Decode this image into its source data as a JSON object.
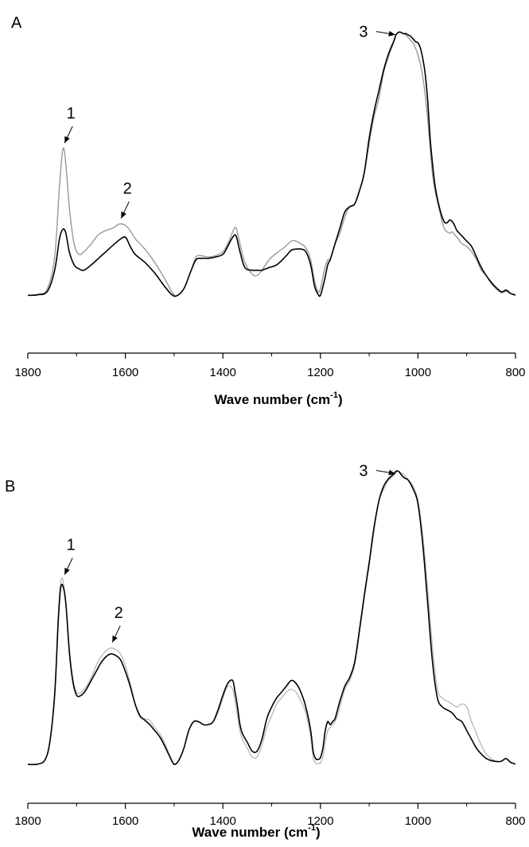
{
  "chart_data": [
    {
      "type": "line",
      "panel_label": "A",
      "xlabel": "Wave number (cm",
      "xlabel_sup": "-1",
      "xlabel_close": ")",
      "xlim": [
        1800,
        800
      ],
      "ylim": [
        0,
        1.05
      ],
      "xticks": [
        1800,
        1600,
        1400,
        1200,
        1000,
        800
      ],
      "xtick_labels": [
        "1800",
        "1600",
        "1400",
        "1200",
        "1000",
        "800"
      ],
      "grid": false,
      "series": [
        {
          "color": "#999999",
          "x": [
            1800,
            1780,
            1760,
            1745,
            1735,
            1728,
            1722,
            1715,
            1705,
            1695,
            1685,
            1670,
            1655,
            1640,
            1625,
            1612,
            1600,
            1590,
            1580,
            1560,
            1540,
            1520,
            1505,
            1495,
            1480,
            1465,
            1455,
            1445,
            1430,
            1415,
            1400,
            1390,
            1380,
            1373,
            1365,
            1355,
            1340,
            1330,
            1320,
            1305,
            1290,
            1275,
            1260,
            1250,
            1240,
            1230,
            1220,
            1212,
            1205,
            1200,
            1192,
            1185,
            1180,
            1170,
            1160,
            1150,
            1140,
            1130,
            1120,
            1110,
            1100,
            1090,
            1080,
            1070,
            1060,
            1050,
            1045,
            1040,
            1035,
            1030,
            1025,
            1020,
            1015,
            1010,
            1005,
            1000,
            995,
            990,
            985,
            980,
            975,
            970,
            965,
            960,
            955,
            950,
            945,
            940,
            935,
            930,
            925,
            920,
            910,
            900,
            890,
            880,
            870,
            860,
            850,
            840,
            830,
            825,
            820,
            815,
            810,
            800
          ],
          "y": [
            0.005,
            0.008,
            0.03,
            0.15,
            0.42,
            0.56,
            0.5,
            0.34,
            0.2,
            0.16,
            0.17,
            0.2,
            0.235,
            0.25,
            0.26,
            0.275,
            0.27,
            0.25,
            0.22,
            0.18,
            0.13,
            0.07,
            0.02,
            0.003,
            0.03,
            0.1,
            0.15,
            0.155,
            0.15,
            0.155,
            0.17,
            0.2,
            0.245,
            0.26,
            0.2,
            0.13,
            0.085,
            0.08,
            0.1,
            0.14,
            0.165,
            0.185,
            0.21,
            0.21,
            0.2,
            0.185,
            0.14,
            0.06,
            0.02,
            0.03,
            0.1,
            0.14,
            0.14,
            0.2,
            0.24,
            0.3,
            0.34,
            0.35,
            0.4,
            0.47,
            0.58,
            0.68,
            0.75,
            0.85,
            0.91,
            0.96,
            0.99,
            1.0,
            1.0,
            0.995,
            0.99,
            0.98,
            0.97,
            0.96,
            0.94,
            0.915,
            0.88,
            0.83,
            0.76,
            0.67,
            0.56,
            0.46,
            0.4,
            0.36,
            0.32,
            0.28,
            0.255,
            0.245,
            0.24,
            0.245,
            0.235,
            0.225,
            0.2,
            0.19,
            0.17,
            0.14,
            0.1,
            0.08,
            0.05,
            0.03,
            0.015,
            0.016,
            0.02,
            0.017,
            0.012,
            0.005
          ]
        },
        {
          "color": "#000000",
          "x": [
            1800,
            1780,
            1760,
            1745,
            1735,
            1728,
            1722,
            1715,
            1705,
            1695,
            1685,
            1670,
            1655,
            1640,
            1625,
            1612,
            1600,
            1590,
            1580,
            1560,
            1540,
            1520,
            1505,
            1495,
            1480,
            1465,
            1455,
            1445,
            1430,
            1415,
            1400,
            1390,
            1380,
            1373,
            1365,
            1355,
            1340,
            1330,
            1320,
            1305,
            1290,
            1275,
            1260,
            1250,
            1240,
            1230,
            1220,
            1212,
            1205,
            1200,
            1192,
            1185,
            1180,
            1170,
            1160,
            1150,
            1140,
            1130,
            1120,
            1110,
            1100,
            1090,
            1080,
            1070,
            1060,
            1050,
            1045,
            1040,
            1035,
            1030,
            1025,
            1020,
            1015,
            1010,
            1005,
            1000,
            995,
            990,
            985,
            980,
            975,
            970,
            965,
            960,
            955,
            950,
            945,
            940,
            935,
            930,
            925,
            920,
            910,
            900,
            890,
            880,
            870,
            860,
            850,
            840,
            830,
            825,
            820,
            815,
            810,
            800
          ],
          "y": [
            0.005,
            0.007,
            0.02,
            0.1,
            0.22,
            0.255,
            0.24,
            0.17,
            0.12,
            0.105,
            0.1,
            0.12,
            0.145,
            0.17,
            0.195,
            0.215,
            0.225,
            0.19,
            0.16,
            0.13,
            0.09,
            0.04,
            0.008,
            0.003,
            0.03,
            0.1,
            0.14,
            0.145,
            0.145,
            0.15,
            0.16,
            0.19,
            0.225,
            0.23,
            0.17,
            0.11,
            0.1,
            0.1,
            0.1,
            0.11,
            0.12,
            0.145,
            0.175,
            0.18,
            0.18,
            0.17,
            0.12,
            0.04,
            0.01,
            0.005,
            0.06,
            0.12,
            0.14,
            0.2,
            0.26,
            0.32,
            0.34,
            0.35,
            0.4,
            0.47,
            0.6,
            0.7,
            0.78,
            0.86,
            0.92,
            0.965,
            0.99,
            1.0,
            1.0,
            0.995,
            0.995,
            0.99,
            0.985,
            0.975,
            0.965,
            0.96,
            0.94,
            0.9,
            0.84,
            0.74,
            0.6,
            0.5,
            0.42,
            0.37,
            0.33,
            0.3,
            0.28,
            0.28,
            0.29,
            0.285,
            0.27,
            0.25,
            0.23,
            0.21,
            0.19,
            0.15,
            0.11,
            0.08,
            0.055,
            0.035,
            0.02,
            0.02,
            0.025,
            0.02,
            0.012,
            0.006
          ]
        }
      ],
      "annotations": [
        {
          "label": "1",
          "x": 1728,
          "y": 0.56
        },
        {
          "label": "2",
          "x": 1612,
          "y": 0.275
        },
        {
          "label": "3",
          "x": 1040,
          "y": 1.0
        }
      ]
    },
    {
      "type": "line",
      "panel_label": "B",
      "xlabel": "Wave number (cm",
      "xlabel_sup": "-1",
      "xlabel_close": ")",
      "xlim": [
        1800,
        800
      ],
      "ylim": [
        0,
        1.05
      ],
      "xticks": [
        1800,
        1600,
        1400,
        1200,
        1000,
        800
      ],
      "xtick_labels": [
        "1800",
        "1600",
        "1400",
        "1200",
        "1000",
        "800"
      ],
      "grid": false,
      "series": [
        {
          "color": "#bbbbbb",
          "x": [
            1800,
            1780,
            1765,
            1755,
            1745,
            1738,
            1733,
            1728,
            1722,
            1715,
            1708,
            1700,
            1690,
            1680,
            1670,
            1660,
            1650,
            1640,
            1630,
            1620,
            1610,
            1600,
            1590,
            1580,
            1570,
            1560,
            1550,
            1540,
            1530,
            1520,
            1510,
            1500,
            1490,
            1480,
            1470,
            1460,
            1450,
            1440,
            1430,
            1420,
            1410,
            1400,
            1390,
            1380,
            1375,
            1370,
            1365,
            1360,
            1350,
            1340,
            1330,
            1320,
            1310,
            1300,
            1290,
            1280,
            1270,
            1260,
            1250,
            1240,
            1230,
            1220,
            1215,
            1210,
            1205,
            1200,
            1195,
            1190,
            1185,
            1180,
            1175,
            1170,
            1165,
            1160,
            1150,
            1140,
            1130,
            1120,
            1110,
            1100,
            1090,
            1080,
            1070,
            1060,
            1050,
            1045,
            1040,
            1035,
            1030,
            1025,
            1020,
            1010,
            1000,
            990,
            980,
            970,
            960,
            950,
            940,
            930,
            920,
            910,
            900,
            890,
            880,
            870,
            860,
            850,
            840,
            830,
            825,
            820,
            815,
            810,
            800
          ],
          "y": [
            0.005,
            0.006,
            0.02,
            0.08,
            0.25,
            0.5,
            0.62,
            0.63,
            0.55,
            0.4,
            0.3,
            0.25,
            0.25,
            0.27,
            0.3,
            0.34,
            0.37,
            0.39,
            0.4,
            0.395,
            0.38,
            0.34,
            0.28,
            0.21,
            0.165,
            0.16,
            0.155,
            0.13,
            0.11,
            0.08,
            0.04,
            0.008,
            0.02,
            0.06,
            0.12,
            0.15,
            0.15,
            0.14,
            0.14,
            0.15,
            0.18,
            0.23,
            0.27,
            0.26,
            0.22,
            0.17,
            0.12,
            0.09,
            0.06,
            0.03,
            0.03,
            0.07,
            0.13,
            0.17,
            0.21,
            0.23,
            0.25,
            0.26,
            0.25,
            0.22,
            0.18,
            0.1,
            0.03,
            0.01,
            0.008,
            0.01,
            0.03,
            0.08,
            0.12,
            0.13,
            0.14,
            0.15,
            0.17,
            0.2,
            0.26,
            0.29,
            0.34,
            0.45,
            0.57,
            0.68,
            0.8,
            0.9,
            0.94,
            0.97,
            0.985,
            0.995,
            1.0,
            0.995,
            0.99,
            0.98,
            0.97,
            0.95,
            0.9,
            0.78,
            0.6,
            0.4,
            0.26,
            0.23,
            0.22,
            0.21,
            0.2,
            0.21,
            0.2,
            0.15,
            0.11,
            0.07,
            0.04,
            0.025,
            0.015,
            0.015,
            0.02,
            0.025,
            0.02,
            0.012,
            0.006
          ]
        },
        {
          "color": "#000000",
          "x": [
            1800,
            1780,
            1765,
            1755,
            1745,
            1738,
            1733,
            1728,
            1722,
            1715,
            1708,
            1700,
            1690,
            1680,
            1670,
            1660,
            1650,
            1640,
            1630,
            1620,
            1610,
            1600,
            1590,
            1580,
            1570,
            1560,
            1550,
            1540,
            1530,
            1520,
            1510,
            1500,
            1490,
            1480,
            1470,
            1460,
            1450,
            1440,
            1430,
            1420,
            1410,
            1400,
            1390,
            1380,
            1375,
            1370,
            1365,
            1360,
            1350,
            1340,
            1330,
            1320,
            1310,
            1300,
            1290,
            1280,
            1270,
            1260,
            1250,
            1240,
            1230,
            1220,
            1215,
            1210,
            1205,
            1200,
            1195,
            1190,
            1185,
            1180,
            1175,
            1170,
            1165,
            1160,
            1150,
            1140,
            1130,
            1120,
            1110,
            1100,
            1090,
            1080,
            1070,
            1060,
            1050,
            1045,
            1040,
            1035,
            1030,
            1025,
            1020,
            1010,
            1000,
            990,
            980,
            970,
            960,
            950,
            940,
            930,
            920,
            910,
            900,
            890,
            880,
            870,
            860,
            850,
            840,
            830,
            825,
            820,
            815,
            810,
            800
          ],
          "y": [
            0.005,
            0.006,
            0.02,
            0.08,
            0.24,
            0.48,
            0.6,
            0.61,
            0.55,
            0.39,
            0.29,
            0.24,
            0.24,
            0.26,
            0.29,
            0.32,
            0.35,
            0.37,
            0.38,
            0.375,
            0.36,
            0.32,
            0.27,
            0.21,
            0.17,
            0.155,
            0.14,
            0.12,
            0.1,
            0.07,
            0.035,
            0.005,
            0.02,
            0.06,
            0.12,
            0.15,
            0.15,
            0.14,
            0.14,
            0.15,
            0.19,
            0.24,
            0.28,
            0.29,
            0.25,
            0.2,
            0.14,
            0.11,
            0.08,
            0.05,
            0.05,
            0.09,
            0.16,
            0.2,
            0.23,
            0.25,
            0.27,
            0.29,
            0.28,
            0.25,
            0.2,
            0.12,
            0.05,
            0.025,
            0.022,
            0.028,
            0.06,
            0.12,
            0.15,
            0.14,
            0.15,
            0.16,
            0.19,
            0.22,
            0.27,
            0.3,
            0.35,
            0.46,
            0.58,
            0.69,
            0.81,
            0.9,
            0.95,
            0.975,
            0.99,
            1.0,
            1.0,
            0.99,
            0.98,
            0.975,
            0.97,
            0.94,
            0.89,
            0.75,
            0.55,
            0.35,
            0.23,
            0.2,
            0.19,
            0.18,
            0.16,
            0.15,
            0.12,
            0.09,
            0.06,
            0.04,
            0.025,
            0.018,
            0.015,
            0.015,
            0.02,
            0.025,
            0.02,
            0.012,
            0.006
          ]
        }
      ],
      "annotations": [
        {
          "label": "1",
          "x": 1728,
          "y": 0.63
        },
        {
          "label": "2",
          "x": 1630,
          "y": 0.4
        },
        {
          "label": "3",
          "x": 1040,
          "y": 1.0
        }
      ]
    }
  ]
}
